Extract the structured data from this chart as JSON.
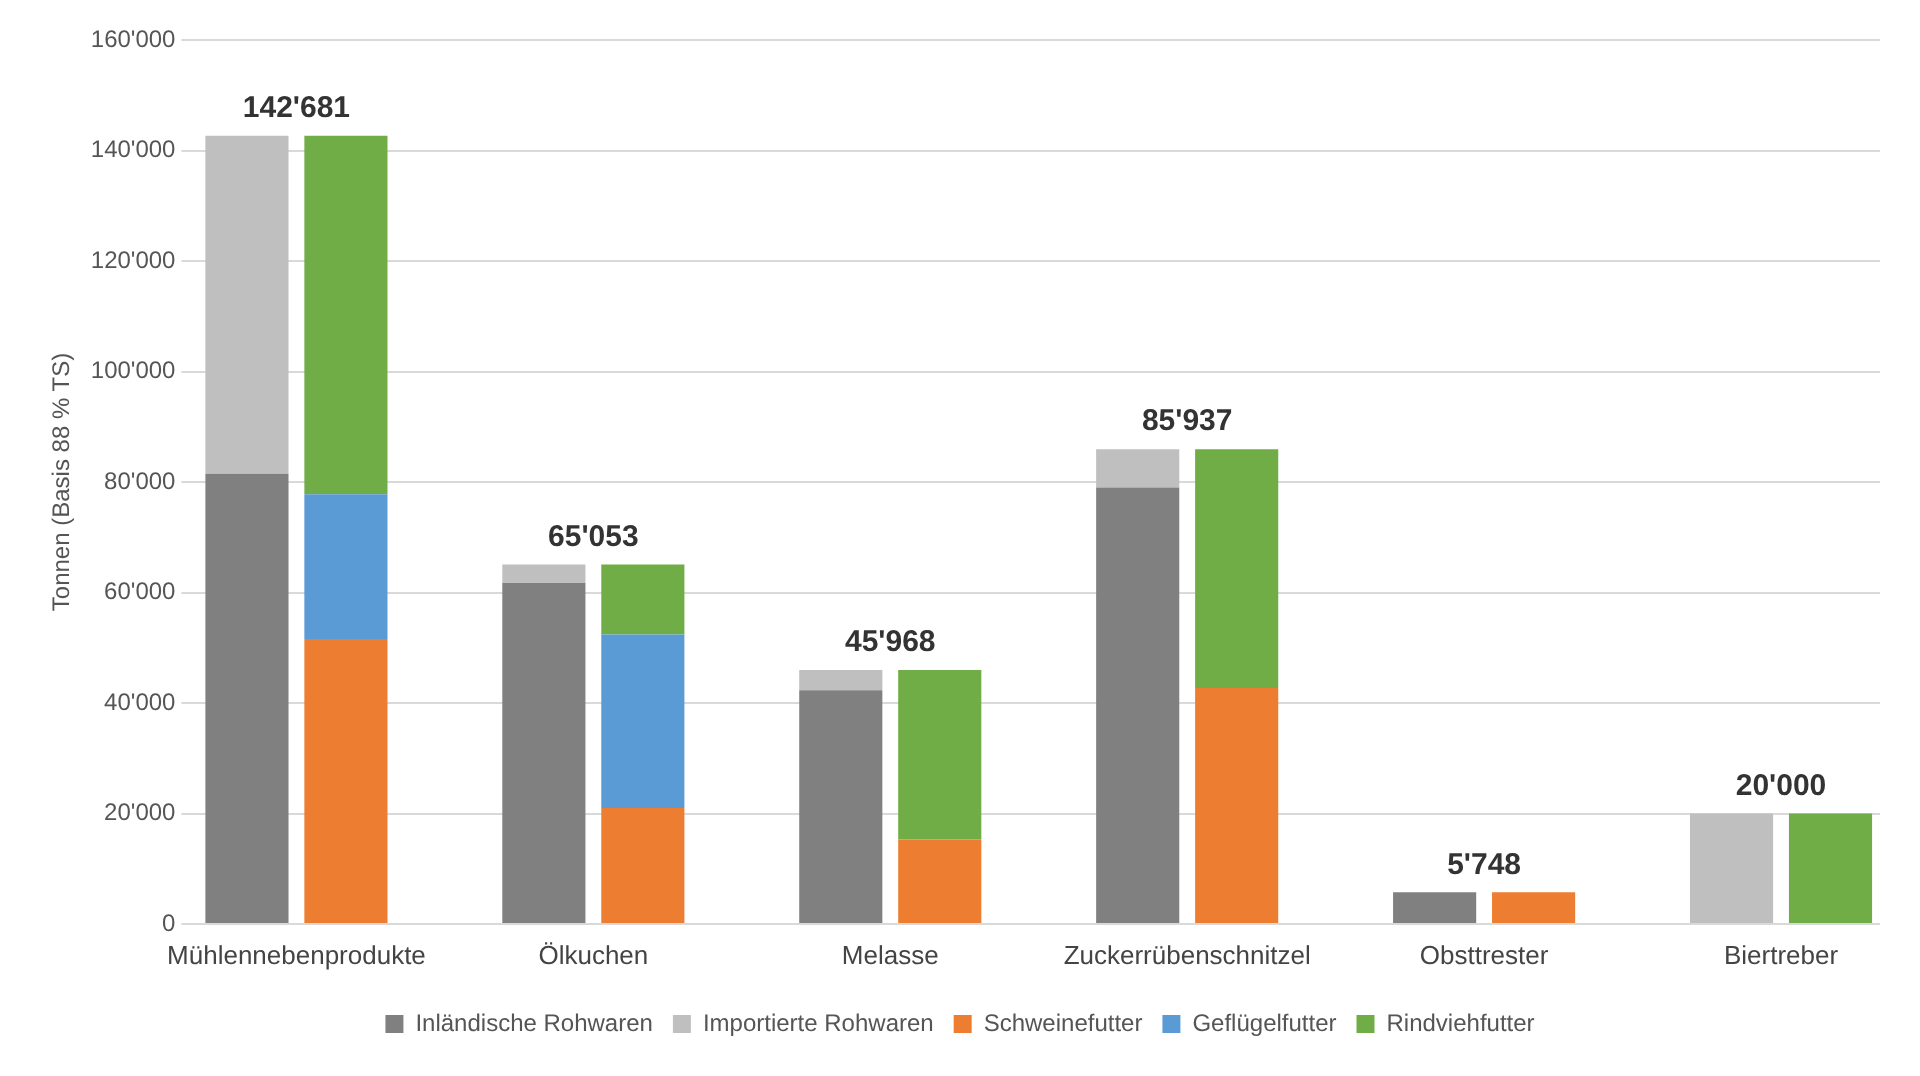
{
  "chart_data": {
    "type": "bar",
    "stacked": true,
    "ylabel": "Tonnen (Basis 88 % TS)",
    "categories": [
      "Mühlennebenprodukte",
      null,
      null,
      "Ölkuchen",
      null,
      null,
      "Melasse",
      null,
      null,
      "Zuckerrübenschnitzel",
      null,
      null,
      "Obsttrester",
      null,
      null,
      "Biertreber",
      null
    ],
    "series": [
      {
        "name": "Inländische Rohwaren",
        "color": "#808080",
        "values": [
          81500,
          null,
          null,
          61700,
          null,
          null,
          42300,
          null,
          null,
          79000,
          null,
          null,
          5748,
          null,
          null,
          null,
          null
        ]
      },
      {
        "name": "Importierte Rohwaren",
        "color": "#bfbfbf",
        "values": [
          61181,
          null,
          null,
          3353,
          null,
          null,
          3668,
          null,
          null,
          6937,
          null,
          null,
          null,
          null,
          null,
          20000,
          null
        ]
      },
      {
        "name": "Schweinefutter",
        "color": "#ed7d31",
        "values": [
          null,
          51600,
          null,
          null,
          21000,
          null,
          null,
          15300,
          null,
          null,
          42700,
          null,
          null,
          5748,
          null,
          null,
          null
        ]
      },
      {
        "name": "Geflügelfutter",
        "color": "#5b9bd5",
        "values": [
          null,
          26200,
          null,
          null,
          31400,
          null,
          null,
          null,
          null,
          null,
          null,
          null,
          null,
          null,
          null,
          null,
          null
        ]
      },
      {
        "name": "Rindviehfutter",
        "color": "#70ad47",
        "values": [
          null,
          64881,
          null,
          null,
          12653,
          null,
          null,
          30668,
          null,
          null,
          43237,
          null,
          null,
          null,
          null,
          null,
          20000
        ]
      }
    ],
    "totals": [
      "142'681",
      null,
      null,
      "65'053",
      null,
      null,
      "45'968",
      null,
      null,
      "85'937",
      null,
      null,
      "5'748",
      null,
      null,
      "20'000",
      null
    ],
    "ylim": [
      0,
      160000
    ],
    "yticks": [
      0,
      {
        "value": 20000,
        "label": "20'000"
      },
      {
        "value": 40000,
        "label": "40'000"
      },
      {
        "value": 60000,
        "label": "60'000"
      },
      {
        "value": 80000,
        "label": "80'000"
      },
      {
        "value": 100000,
        "label": "100'000"
      },
      {
        "value": 120000,
        "label": "120'000"
      },
      {
        "value": 140000,
        "label": "140'000"
      },
      {
        "value": 160000,
        "label": "160'000"
      }
    ],
    "grid": "y",
    "legend": "bottom"
  }
}
